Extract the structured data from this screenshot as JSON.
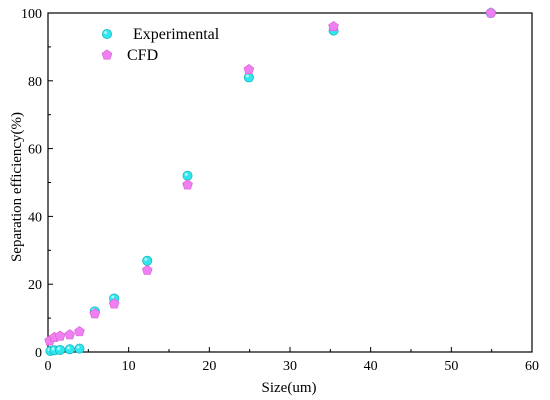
{
  "chart_data": {
    "type": "scatter",
    "xlabel": "Size(um)",
    "ylabel": "Separation efficiency(%)",
    "xlim": [
      0,
      60
    ],
    "ylim": [
      0,
      100
    ],
    "x_ticks": [
      0,
      10,
      20,
      30,
      40,
      50,
      60
    ],
    "y_ticks": [
      0,
      20,
      40,
      60,
      80,
      100
    ],
    "grid": false,
    "legend_position": "top-left",
    "series": [
      {
        "name": "Experimental",
        "marker": "circle",
        "color": "#2ee8ee",
        "points": [
          {
            "x": 0.3,
            "y": 0.3
          },
          {
            "x": 0.8,
            "y": 0.5
          },
          {
            "x": 1.5,
            "y": 0.6
          },
          {
            "x": 2.7,
            "y": 0.8
          },
          {
            "x": 3.9,
            "y": 1.0
          },
          {
            "x": 5.8,
            "y": 12.0
          },
          {
            "x": 8.2,
            "y": 15.8
          },
          {
            "x": 12.3,
            "y": 26.9
          },
          {
            "x": 17.3,
            "y": 52.0
          },
          {
            "x": 24.9,
            "y": 81.0
          },
          {
            "x": 35.4,
            "y": 94.8
          },
          {
            "x": 54.9,
            "y": 100.0
          }
        ]
      },
      {
        "name": "CFD",
        "marker": "pentagon",
        "color": "#f07ff0",
        "points": [
          {
            "x": 0.2,
            "y": 3.3
          },
          {
            "x": 0.8,
            "y": 4.3
          },
          {
            "x": 1.5,
            "y": 4.7
          },
          {
            "x": 2.7,
            "y": 5.1
          },
          {
            "x": 3.9,
            "y": 6.0
          },
          {
            "x": 5.8,
            "y": 11.3
          },
          {
            "x": 8.2,
            "y": 14.2
          },
          {
            "x": 12.3,
            "y": 24.1
          },
          {
            "x": 17.3,
            "y": 49.3
          },
          {
            "x": 24.9,
            "y": 83.3
          },
          {
            "x": 35.4,
            "y": 96.0
          },
          {
            "x": 54.9,
            "y": 100.0
          }
        ]
      }
    ]
  }
}
